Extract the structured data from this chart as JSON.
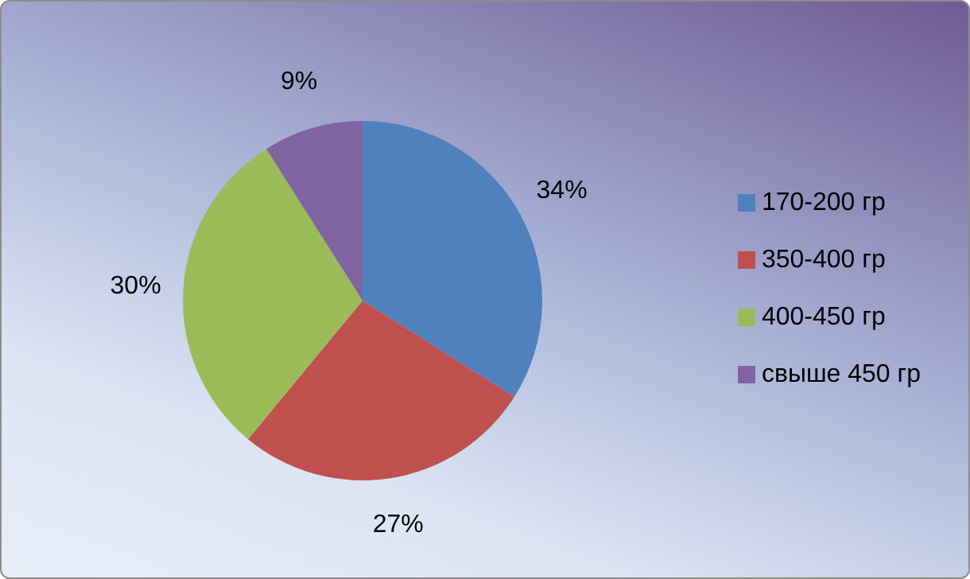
{
  "chart_data": {
    "type": "pie",
    "categories": [
      "170-200 гр",
      "350-400 гр",
      "400-450 гр",
      "свыше 450 гр"
    ],
    "values": [
      34,
      27,
      30,
      9
    ],
    "colors": [
      "#4f81bd",
      "#c0504d",
      "#9bbb59",
      "#8064a2"
    ],
    "value_labels": [
      "34%",
      "27%",
      "30%",
      "9%"
    ],
    "legend": "right"
  }
}
